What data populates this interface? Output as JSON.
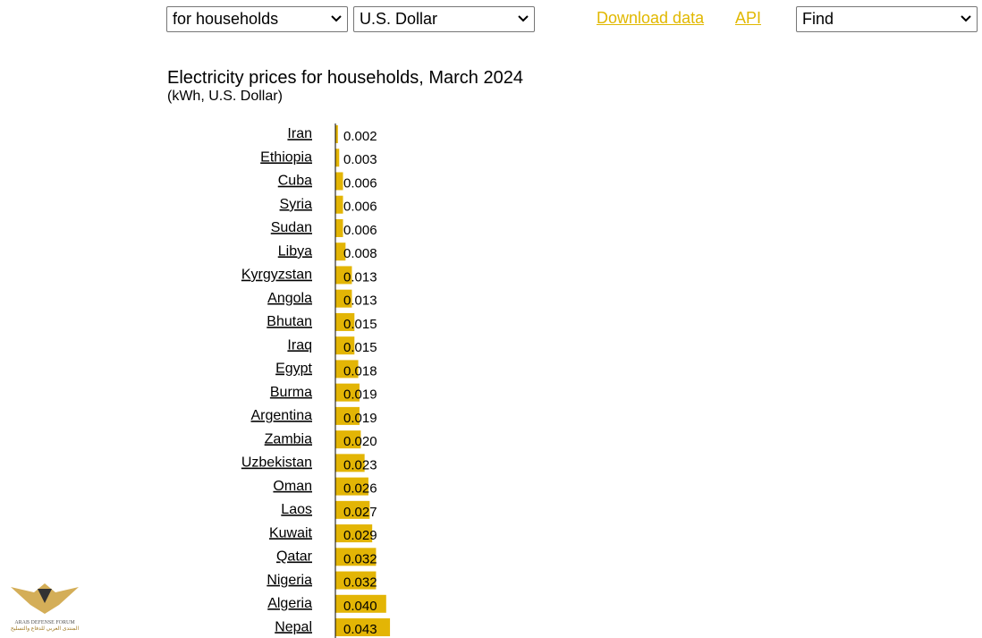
{
  "controls": {
    "filter": "for households",
    "currency": "U.S. Dollar",
    "download": "Download data",
    "api": "API",
    "find": "Find"
  },
  "watermark": {
    "name": "ARAB DEFENSE FORUM",
    "arabic": "المنتدى العربي للدفاع والتسليح"
  },
  "chart_data": {
    "type": "bar",
    "orientation": "horizontal",
    "title": "Electricity prices for households, March 2024",
    "subtitle": "(kWh, U.S. Dollar)",
    "color": "#e3b505",
    "categories": [
      "Iran",
      "Ethiopia",
      "Cuba",
      "Syria",
      "Sudan",
      "Libya",
      "Kyrgyzstan",
      "Angola",
      "Bhutan",
      "Iraq",
      "Egypt",
      "Burma",
      "Argentina",
      "Zambia",
      "Uzbekistan",
      "Oman",
      "Laos",
      "Kuwait",
      "Qatar",
      "Nigeria",
      "Algeria",
      "Nepal"
    ],
    "values": [
      0.002,
      0.003,
      0.006,
      0.006,
      0.006,
      0.008,
      0.013,
      0.013,
      0.015,
      0.015,
      0.018,
      0.019,
      0.019,
      0.02,
      0.023,
      0.026,
      0.027,
      0.029,
      0.032,
      0.032,
      0.04,
      0.043
    ],
    "value_labels": [
      "0.002",
      "0.003",
      "0.006",
      "0.006",
      "0.006",
      "0.008",
      "0.013",
      "0.013",
      "0.015",
      "0.015",
      "0.018",
      "0.019",
      "0.019",
      "0.020",
      "0.023",
      "0.026",
      "0.027",
      "0.029",
      "0.032",
      "0.032",
      "0.040",
      "0.043"
    ]
  }
}
